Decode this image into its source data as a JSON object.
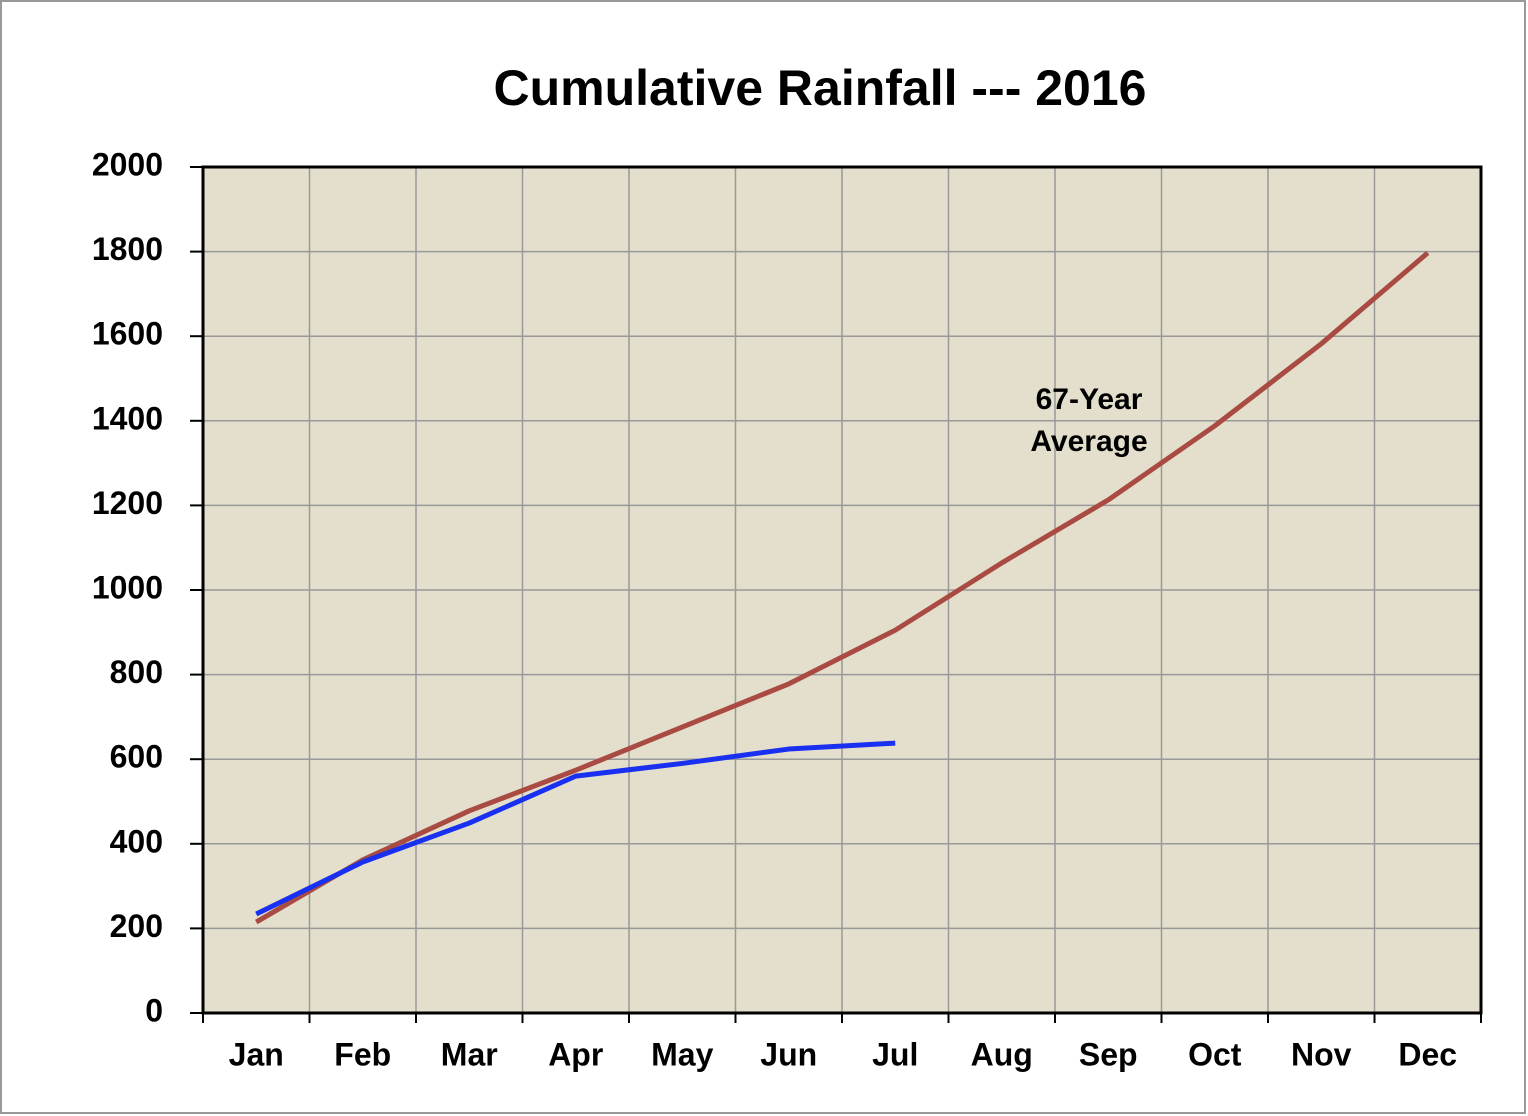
{
  "chart_data": {
    "type": "line",
    "title": "Cumulative Rainfall --- 2016",
    "categories": [
      "Jan",
      "Feb",
      "Mar",
      "Apr",
      "May",
      "Jun",
      "Jul",
      "Aug",
      "Sep",
      "Oct",
      "Nov",
      "Dec"
    ],
    "series": [
      {
        "color": "#a94b42",
        "values": [
          215,
          362,
          478,
          574,
          676,
          778,
          905,
          1064,
          1213,
          1388,
          1582,
          1797
        ]
      },
      {
        "color": "#1a30f0",
        "values": [
          234,
          357,
          449,
          560,
          590,
          624,
          638,
          null,
          null,
          null,
          null,
          null
        ]
      }
    ],
    "annotation": [
      "67-Year",
      "Average"
    ],
    "ylim": [
      0,
      2000
    ],
    "yticks": [
      0,
      200,
      400,
      600,
      800,
      1000,
      1200,
      1400,
      1600,
      1800,
      2000
    ],
    "grid": true,
    "plot_background": "#e3dfcc"
  }
}
